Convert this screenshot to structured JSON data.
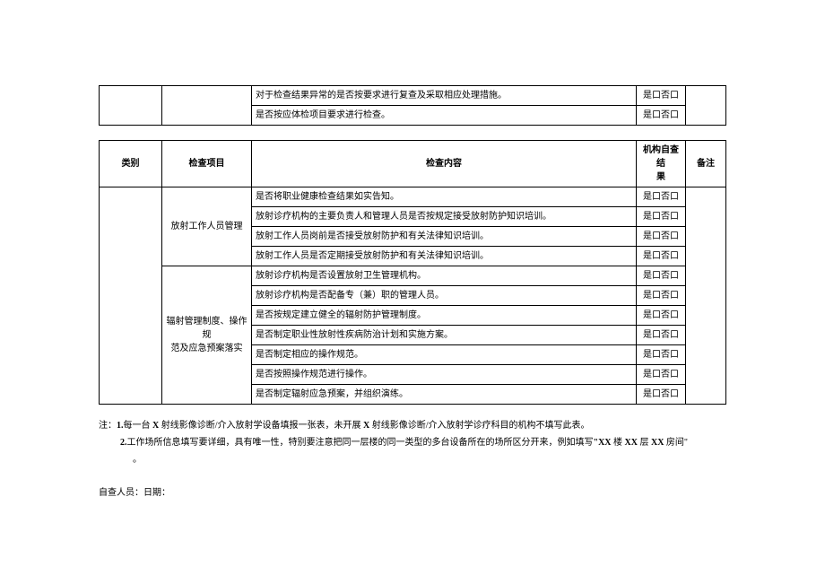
{
  "table1": {
    "rows": [
      {
        "content": "对于检查结果异常的是否按要求进行复查及采取相应处理措施。",
        "result": "是口否口"
      },
      {
        "content": "是否按应体检项目要求进行检查。",
        "result": "是口否口"
      }
    ]
  },
  "table2": {
    "headers": {
      "cat": "类别",
      "item": "检查项目",
      "content": "检查内容",
      "result": "机构自查结\n果",
      "note": "备注"
    },
    "group1": {
      "item": "放射工作人员管理",
      "rows": [
        {
          "content": "是否将职业健康检查结果如实告知。",
          "result": "是口否口"
        },
        {
          "content": "放射诊疗机构的主要负责人和管理人员是否按规定接受放射防护知识培训。",
          "result": "是口否口"
        },
        {
          "content": "放射工作人员岗前是否接受放射防护和有关法律知识培训。",
          "result": "是口否口"
        },
        {
          "content": "放射工作人员是否定期接受放射防护和有关法律知识培训。",
          "result": "是口否口"
        }
      ]
    },
    "group2": {
      "item": "辐射管理制度、操作规\n范及应急预案落实",
      "rows": [
        {
          "content": "放射诊疗机构是否设置放射卫生管理机构。",
          "result": "是口否口"
        },
        {
          "content": "放射诊疗机构是否配备专（兼）职的管理人员。",
          "result": "是口否口"
        },
        {
          "content": "是否按规定建立健全的辐射防护管理制度。",
          "result": "是口否口"
        },
        {
          "content": "是否制定职业性放射性疾病防治计划和实施方案。",
          "result": "是口否口"
        },
        {
          "content": "是否制定相应的操作规范。",
          "result": "是口否口"
        },
        {
          "content": "是否按照操作规范进行操作。",
          "result": "是口否口"
        },
        {
          "content": "是否制定辐射应急预案，并组织演练。",
          "result": "是口否口"
        }
      ]
    }
  },
  "notes": {
    "prefix": "注：",
    "n1a": "每一台",
    "n1b": "射线影像诊断/介入放射学设备填报一张表，未开展",
    "n1c": "射线影像诊断/介入放射学诊疗科目的机构不填写此表。",
    "n2a": "工作场所信息填写要详细，具有唯一性，特别要注意把同一层楼的同一类型的多台设备所在的场所区分开来，例如填写",
    "n2b": "楼",
    "n2c": "层",
    "n2d": "房间\"",
    "n2e": "。",
    "x": "X",
    "xx": "XX",
    "num1": "1.",
    "num2": "2.",
    "quote": "\""
  },
  "sign": {
    "label": "自查人员：日期："
  }
}
